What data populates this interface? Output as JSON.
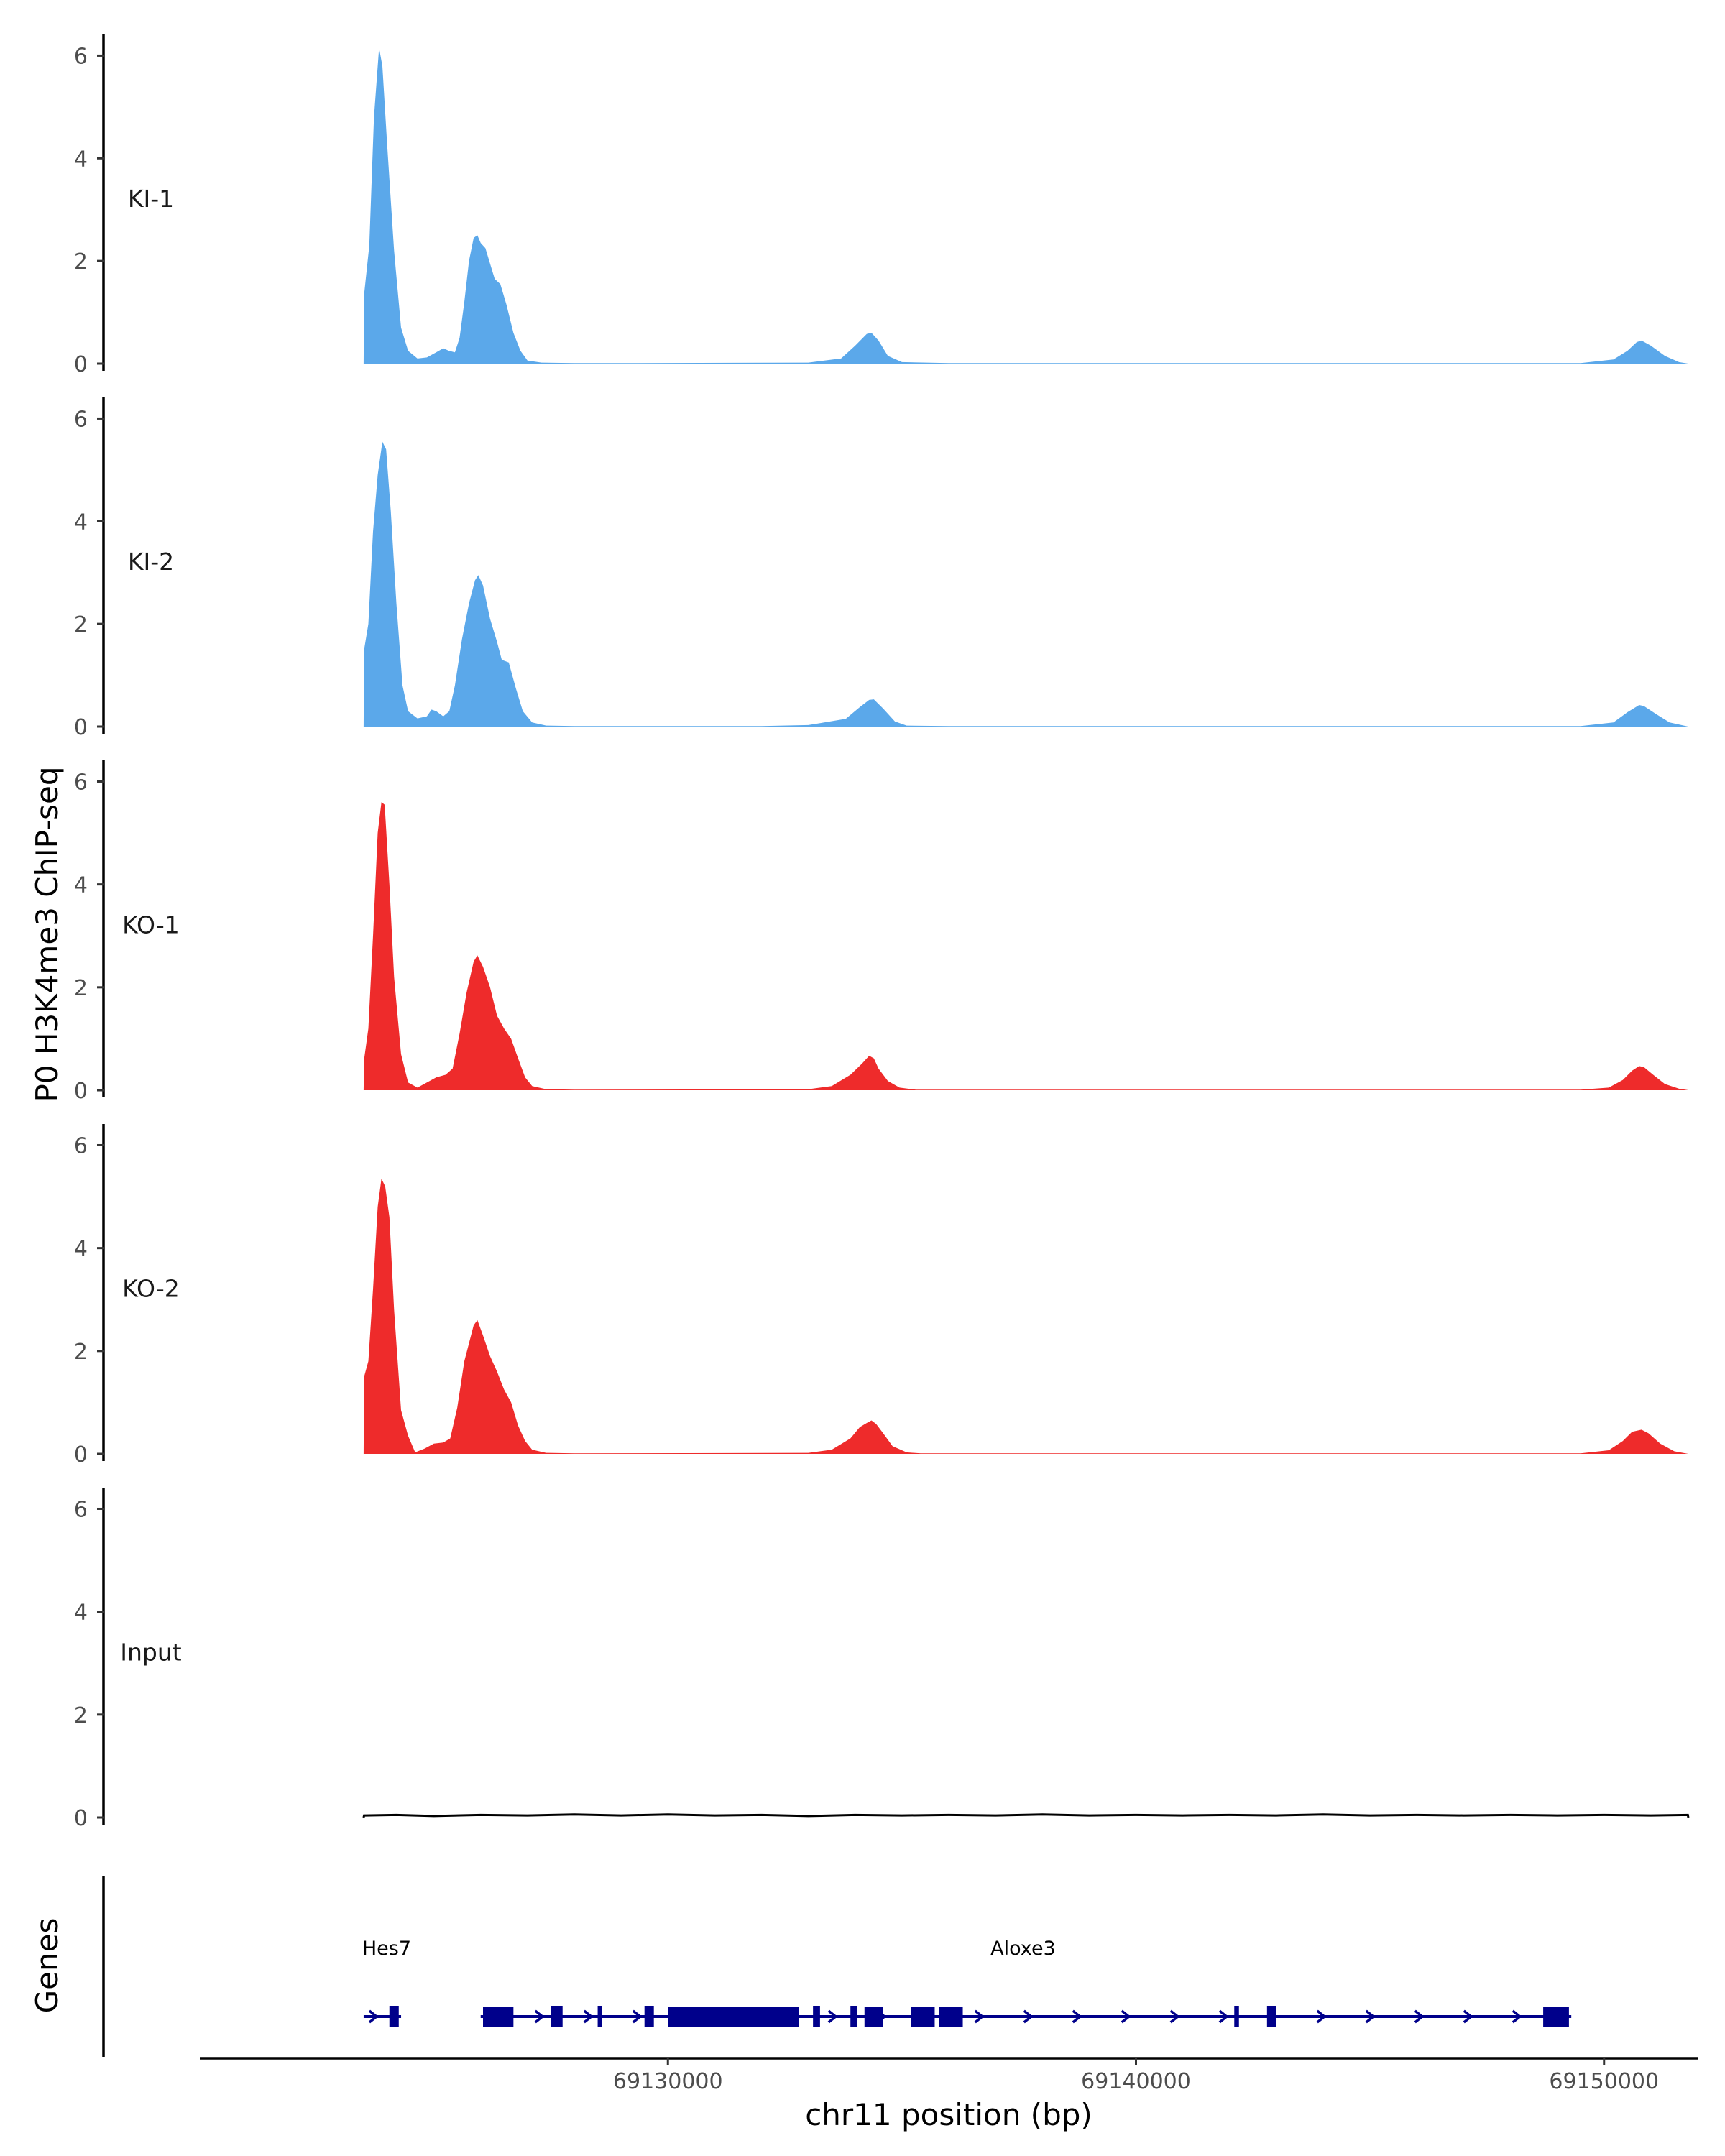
{
  "chart_data": {
    "type": "area",
    "ylabel": "P0 H3K4me3 ChIP-seq",
    "xlabel": "chr11 position (bp)",
    "genes_label": "Genes",
    "xlim": [
      69120000,
      69152000
    ],
    "xticks": [
      69130000,
      69140000,
      69150000
    ],
    "xtick_labels": [
      "69130000",
      "69140000",
      "69150000"
    ],
    "ylim": [
      0,
      6.3
    ],
    "yticks": [
      0,
      2,
      4,
      6
    ],
    "ytick_labels": [
      "0",
      "2",
      "4",
      "6"
    ],
    "tracks": [
      {
        "name": "KI-1",
        "color": "#5BA8EA",
        "points": [
          [
            69123500,
            0
          ],
          [
            69123510,
            1.35
          ],
          [
            69123620,
            2.3
          ],
          [
            69123720,
            4.8
          ],
          [
            69123830,
            6.15
          ],
          [
            69123900,
            5.8
          ],
          [
            69124000,
            4.3
          ],
          [
            69124150,
            2.2
          ],
          [
            69124300,
            0.7
          ],
          [
            69124450,
            0.25
          ],
          [
            69124650,
            0.1
          ],
          [
            69124850,
            0.12
          ],
          [
            69125050,
            0.22
          ],
          [
            69125200,
            0.3
          ],
          [
            69125320,
            0.25
          ],
          [
            69125450,
            0.22
          ],
          [
            69125550,
            0.5
          ],
          [
            69125650,
            1.2
          ],
          [
            69125750,
            2.0
          ],
          [
            69125850,
            2.45
          ],
          [
            69125930,
            2.5
          ],
          [
            69126000,
            2.35
          ],
          [
            69126100,
            2.25
          ],
          [
            69126200,
            1.95
          ],
          [
            69126300,
            1.65
          ],
          [
            69126420,
            1.55
          ],
          [
            69126550,
            1.15
          ],
          [
            69126700,
            0.6
          ],
          [
            69126850,
            0.25
          ],
          [
            69127000,
            0.06
          ],
          [
            69127300,
            0.02
          ],
          [
            69128000,
            0.01
          ],
          [
            69129000,
            0.01
          ],
          [
            69133000,
            0.02
          ],
          [
            69133700,
            0.1
          ],
          [
            69134000,
            0.35
          ],
          [
            69134250,
            0.58
          ],
          [
            69134350,
            0.6
          ],
          [
            69134500,
            0.45
          ],
          [
            69134700,
            0.15
          ],
          [
            69135000,
            0.03
          ],
          [
            69136000,
            0.01
          ],
          [
            69149500,
            0.01
          ],
          [
            69150200,
            0.08
          ],
          [
            69150500,
            0.25
          ],
          [
            69150700,
            0.42
          ],
          [
            69150800,
            0.45
          ],
          [
            69151000,
            0.35
          ],
          [
            69151300,
            0.15
          ],
          [
            69151600,
            0.03
          ],
          [
            69151800,
            0
          ]
        ]
      },
      {
        "name": "KI-2",
        "color": "#5BA8EA",
        "points": [
          [
            69123500,
            0
          ],
          [
            69123510,
            1.5
          ],
          [
            69123600,
            2.0
          ],
          [
            69123700,
            3.8
          ],
          [
            69123800,
            4.9
          ],
          [
            69123900,
            5.55
          ],
          [
            69123980,
            5.4
          ],
          [
            69124080,
            4.2
          ],
          [
            69124200,
            2.4
          ],
          [
            69124330,
            0.8
          ],
          [
            69124450,
            0.3
          ],
          [
            69124650,
            0.16
          ],
          [
            69124850,
            0.2
          ],
          [
            69124950,
            0.33
          ],
          [
            69125050,
            0.3
          ],
          [
            69125200,
            0.2
          ],
          [
            69125330,
            0.3
          ],
          [
            69125450,
            0.8
          ],
          [
            69125600,
            1.7
          ],
          [
            69125750,
            2.4
          ],
          [
            69125880,
            2.85
          ],
          [
            69125950,
            2.95
          ],
          [
            69126050,
            2.75
          ],
          [
            69126200,
            2.1
          ],
          [
            69126350,
            1.65
          ],
          [
            69126450,
            1.3
          ],
          [
            69126600,
            1.25
          ],
          [
            69126750,
            0.75
          ],
          [
            69126900,
            0.3
          ],
          [
            69127100,
            0.08
          ],
          [
            69127400,
            0.02
          ],
          [
            69128000,
            0.01
          ],
          [
            69132000,
            0.01
          ],
          [
            69133000,
            0.03
          ],
          [
            69133800,
            0.15
          ],
          [
            69134100,
            0.38
          ],
          [
            69134300,
            0.52
          ],
          [
            69134400,
            0.53
          ],
          [
            69134600,
            0.35
          ],
          [
            69134850,
            0.1
          ],
          [
            69135100,
            0.02
          ],
          [
            69136000,
            0.01
          ],
          [
            69149500,
            0.01
          ],
          [
            69150200,
            0.08
          ],
          [
            69150500,
            0.28
          ],
          [
            69150750,
            0.42
          ],
          [
            69150850,
            0.4
          ],
          [
            69151100,
            0.25
          ],
          [
            69151400,
            0.08
          ],
          [
            69151800,
            0
          ]
        ]
      },
      {
        "name": "KO-1",
        "color": "#EE2B2B",
        "points": [
          [
            69123500,
            0
          ],
          [
            69123510,
            0.6
          ],
          [
            69123600,
            1.2
          ],
          [
            69123700,
            3.0
          ],
          [
            69123800,
            5.0
          ],
          [
            69123880,
            5.6
          ],
          [
            69123950,
            5.55
          ],
          [
            69124050,
            4.0
          ],
          [
            69124150,
            2.2
          ],
          [
            69124300,
            0.7
          ],
          [
            69124450,
            0.15
          ],
          [
            69124650,
            0.05
          ],
          [
            69124850,
            0.15
          ],
          [
            69125050,
            0.25
          ],
          [
            69125250,
            0.3
          ],
          [
            69125400,
            0.42
          ],
          [
            69125550,
            1.1
          ],
          [
            69125700,
            1.9
          ],
          [
            69125850,
            2.5
          ],
          [
            69125930,
            2.62
          ],
          [
            69126050,
            2.4
          ],
          [
            69126200,
            2.0
          ],
          [
            69126350,
            1.45
          ],
          [
            69126500,
            1.2
          ],
          [
            69126650,
            1.0
          ],
          [
            69126800,
            0.62
          ],
          [
            69126950,
            0.25
          ],
          [
            69127100,
            0.08
          ],
          [
            69127400,
            0.02
          ],
          [
            69128000,
            0.01
          ],
          [
            69133000,
            0.02
          ],
          [
            69133500,
            0.08
          ],
          [
            69133900,
            0.3
          ],
          [
            69134150,
            0.52
          ],
          [
            69134300,
            0.67
          ],
          [
            69134400,
            0.62
          ],
          [
            69134500,
            0.42
          ],
          [
            69134700,
            0.18
          ],
          [
            69134950,
            0.05
          ],
          [
            69135300,
            0.01
          ],
          [
            69149500,
            0.01
          ],
          [
            69150100,
            0.05
          ],
          [
            69150400,
            0.2
          ],
          [
            69150600,
            0.38
          ],
          [
            69150750,
            0.47
          ],
          [
            69150850,
            0.45
          ],
          [
            69151050,
            0.3
          ],
          [
            69151300,
            0.12
          ],
          [
            69151600,
            0.03
          ],
          [
            69151800,
            0
          ]
        ]
      },
      {
        "name": "KO-2",
        "color": "#EE2B2B",
        "points": [
          [
            69123500,
            0
          ],
          [
            69123510,
            1.5
          ],
          [
            69123600,
            1.8
          ],
          [
            69123700,
            3.2
          ],
          [
            69123800,
            4.8
          ],
          [
            69123880,
            5.35
          ],
          [
            69123960,
            5.2
          ],
          [
            69124050,
            4.6
          ],
          [
            69124150,
            2.8
          ],
          [
            69124300,
            0.85
          ],
          [
            69124450,
            0.35
          ],
          [
            69124600,
            0.03
          ],
          [
            69124800,
            0.1
          ],
          [
            69125000,
            0.2
          ],
          [
            69125200,
            0.22
          ],
          [
            69125350,
            0.3
          ],
          [
            69125500,
            0.9
          ],
          [
            69125650,
            1.8
          ],
          [
            69125850,
            2.5
          ],
          [
            69125930,
            2.6
          ],
          [
            69126050,
            2.3
          ],
          [
            69126200,
            1.9
          ],
          [
            69126350,
            1.6
          ],
          [
            69126500,
            1.25
          ],
          [
            69126650,
            1.0
          ],
          [
            69126800,
            0.55
          ],
          [
            69126950,
            0.25
          ],
          [
            69127100,
            0.08
          ],
          [
            69127400,
            0.02
          ],
          [
            69128000,
            0.01
          ],
          [
            69133000,
            0.02
          ],
          [
            69133500,
            0.08
          ],
          [
            69133900,
            0.3
          ],
          [
            69134100,
            0.52
          ],
          [
            69134250,
            0.6
          ],
          [
            69134350,
            0.65
          ],
          [
            69134450,
            0.58
          ],
          [
            69134600,
            0.4
          ],
          [
            69134800,
            0.15
          ],
          [
            69135100,
            0.03
          ],
          [
            69135400,
            0.01
          ],
          [
            69149500,
            0.01
          ],
          [
            69150100,
            0.07
          ],
          [
            69150400,
            0.25
          ],
          [
            69150600,
            0.43
          ],
          [
            69150800,
            0.47
          ],
          [
            69150950,
            0.4
          ],
          [
            69151200,
            0.2
          ],
          [
            69151500,
            0.05
          ],
          [
            69151800,
            0
          ]
        ]
      },
      {
        "name": "Input",
        "color": "#000000",
        "points": [
          [
            69123500,
            0
          ],
          [
            69123510,
            0.04
          ],
          [
            69124200,
            0.05
          ],
          [
            69125000,
            0.03
          ],
          [
            69126000,
            0.05
          ],
          [
            69127000,
            0.04
          ],
          [
            69128000,
            0.06
          ],
          [
            69129000,
            0.04
          ],
          [
            69130000,
            0.06
          ],
          [
            69131000,
            0.04
          ],
          [
            69132000,
            0.05
          ],
          [
            69133000,
            0.03
          ],
          [
            69134000,
            0.05
          ],
          [
            69135000,
            0.04
          ],
          [
            69136000,
            0.05
          ],
          [
            69137000,
            0.04
          ],
          [
            69138000,
            0.06
          ],
          [
            69139000,
            0.04
          ],
          [
            69140000,
            0.05
          ],
          [
            69141000,
            0.04
          ],
          [
            69142000,
            0.05
          ],
          [
            69143000,
            0.04
          ],
          [
            69144000,
            0.06
          ],
          [
            69145000,
            0.04
          ],
          [
            69146000,
            0.05
          ],
          [
            69147000,
            0.04
          ],
          [
            69148000,
            0.05
          ],
          [
            69149000,
            0.04
          ],
          [
            69150000,
            0.05
          ],
          [
            69151000,
            0.04
          ],
          [
            69151790,
            0.05
          ],
          [
            69151800,
            0
          ]
        ]
      }
    ],
    "genes": [
      {
        "name": "Hes7",
        "start": 69123500,
        "end": 69124300,
        "strand": "+",
        "exons": [
          [
            69124050,
            69124250
          ]
        ]
      },
      {
        "name": "Aloxe3",
        "start": 69126000,
        "end": 69149300,
        "strand": "+",
        "exons": [
          [
            69126050,
            69126700
          ],
          [
            69127500,
            69127750
          ],
          [
            69128500,
            69128560
          ],
          [
            69129500,
            69129700
          ],
          [
            69130000,
            69132800
          ],
          [
            69133100,
            69133250
          ],
          [
            69133900,
            69134050
          ],
          [
            69134200,
            69134600
          ],
          [
            69135200,
            69135700
          ],
          [
            69135800,
            69136300
          ],
          [
            69142100,
            69142200
          ],
          [
            69142800,
            69143000
          ],
          [
            69148700,
            69149250
          ]
        ]
      }
    ]
  }
}
